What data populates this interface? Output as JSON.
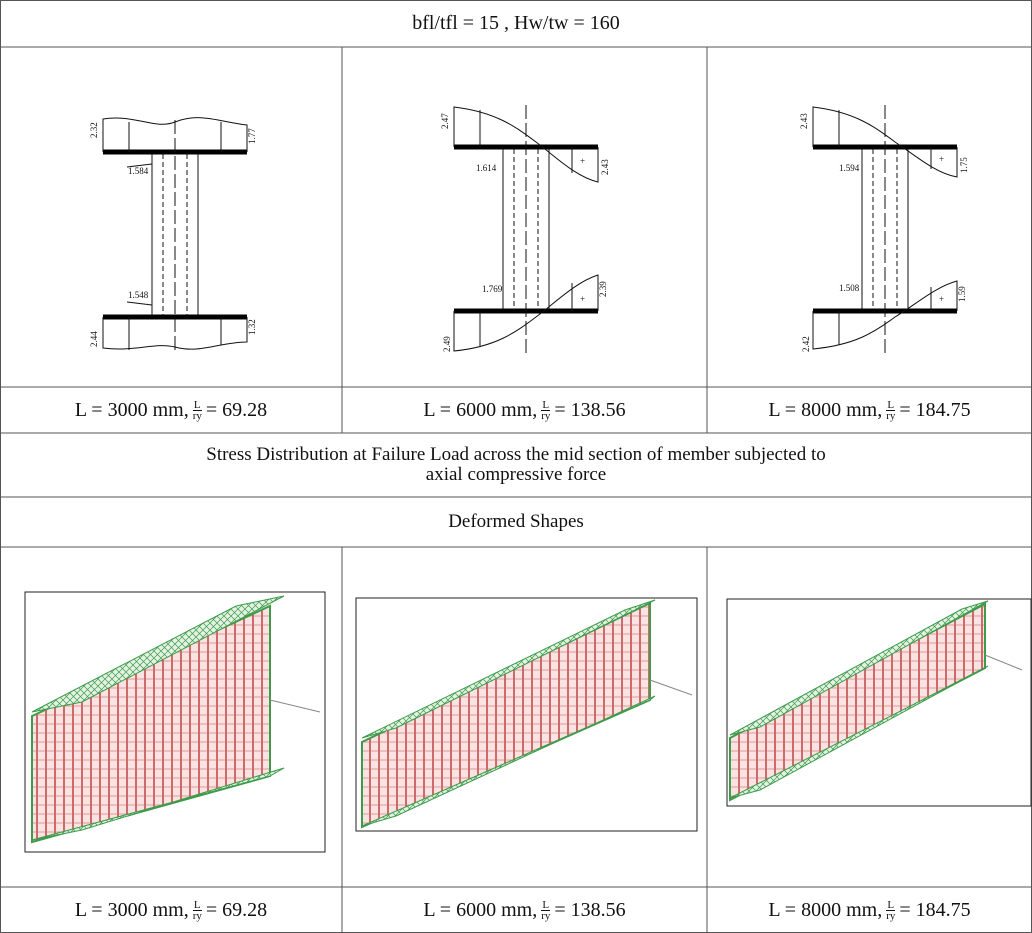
{
  "table": {
    "title": "bfl/tfl = 15 , Hw/tw = 160",
    "stress_figures": [
      {
        "top_left": "2.32",
        "top_right": "1.77",
        "web_top": "1.584",
        "web_bottom": "1.548",
        "bottom_left": "2.44",
        "bottom_right": "1.32"
      },
      {
        "top_left": "2.47",
        "top_right": "2.43",
        "plus_top": "+",
        "web_top": "1.614",
        "web_bottom": "1.769",
        "bottom_right": "2.39",
        "plus_bottom": "+",
        "bottom_left": "2.49"
      },
      {
        "top_left": "2.43",
        "top_right": "1.75",
        "plus_top": "+",
        "web_top": "1.594",
        "web_bottom": "1.508",
        "bottom_right": "1.59",
        "plus_bottom": "+",
        "bottom_left": "2.42"
      }
    ],
    "captions_top": [
      {
        "prefix": "L = 3000 mm,",
        "frac_num": "L",
        "frac_den": "ry",
        "suffix": "= 69.28"
      },
      {
        "prefix": "L = 6000 mm,",
        "frac_num": "L",
        "frac_den": "ry",
        "suffix": "= 138.56"
      },
      {
        "prefix": "L = 8000 mm,",
        "frac_num": "L",
        "frac_den": "ry",
        "suffix": "= 184.75"
      }
    ],
    "stress_note": [
      "Stress Distribution at Failure Load across the mid section of member subjected to",
      "axial compressive force"
    ],
    "deformed_heading": "Deformed Shapes",
    "captions_bottom": [
      {
        "prefix": "L = 3000 mm,",
        "frac_num": "L",
        "frac_den": "ry",
        "suffix": "= 69.28"
      },
      {
        "prefix": "L = 6000 mm,",
        "frac_num": "L",
        "frac_den": "ry",
        "suffix": "= 138.56"
      },
      {
        "prefix": "L = 8000 mm,",
        "frac_num": "L",
        "frac_den": "ry",
        "suffix": "= 184.75"
      }
    ]
  }
}
